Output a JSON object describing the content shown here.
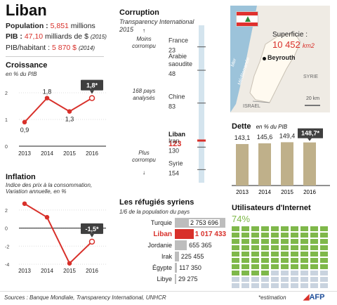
{
  "country": "Liban",
  "facts": {
    "population_label": "Population :",
    "population_value": "5,851",
    "population_unit": "millions",
    "pib_label": "PIB :",
    "pib_value": "47,10",
    "pib_unit": "milliards de $",
    "pib_year": "(2015)",
    "pib_hab_label": "PIB/habitant :",
    "pib_hab_value": "5 870 $",
    "pib_hab_year": "(2014)"
  },
  "croissance": {
    "title": "Croissance",
    "subtitle": "en % du PIB",
    "callout": "1,8*",
    "chart_data": {
      "type": "line",
      "title": "Croissance",
      "ylabel": "en % du PIB",
      "categories": [
        "2013",
        "2014",
        "2015",
        "2016"
      ],
      "values": [
        0.9,
        1.8,
        1.3,
        1.8
      ],
      "value_labels": [
        "0,9",
        "1,8",
        "1,3",
        "1,8*"
      ],
      "yticks": [
        0,
        1,
        2
      ],
      "ylim": [
        0,
        2
      ],
      "estimate_last": true,
      "color": "#d8302a"
    }
  },
  "inflation": {
    "title": "Inflation",
    "subtitle_line1": "Indice des prix à la consommation,",
    "subtitle_line2": "Variation annuelle, en %",
    "callout": "-1,5*",
    "chart_data": {
      "type": "line",
      "title": "Inflation",
      "categories": [
        "2013",
        "2014",
        "2015",
        "2016"
      ],
      "values": [
        2.7,
        1.2,
        -3.9,
        -1.5
      ],
      "value_labels": [
        "",
        "",
        "",
        "-1,5*"
      ],
      "yticks": [
        -4,
        -2,
        0,
        2
      ],
      "ylim": [
        -4,
        3
      ],
      "estimate_last": true,
      "color": "#d8302a"
    }
  },
  "corruption": {
    "title": "Corruption",
    "subtitle_line1": "Transparency International",
    "subtitle_line2": "2015",
    "less_corrupt_line1": "Moins",
    "less_corrupt_line2": "corrompu",
    "more_corrupt_line1": "Plus",
    "more_corrupt_line2": "corrompu",
    "count_line1": "168 pays",
    "count_line2": "analysés",
    "chart_data": {
      "type": "scatter",
      "title": "Corruption",
      "countries": [
        "France",
        "Arabie saoudite",
        "Chine",
        "Liban",
        "Iran",
        "Syrie"
      ],
      "country_lines": [
        [
          "France"
        ],
        [
          "Arabie",
          "saoudite"
        ],
        [
          "Chine"
        ],
        [
          "Liban"
        ],
        [
          "Iran"
        ],
        [
          "Syrie"
        ]
      ],
      "ranks": [
        "23",
        "48",
        "83",
        "123",
        "130",
        "154"
      ],
      "rank_values": [
        23,
        48,
        83,
        123,
        130,
        154
      ],
      "total": 168,
      "highlight": "Liban"
    }
  },
  "refugies": {
    "title": "Les réfugiés syriens",
    "subtitle": "1/6 de la population du pays",
    "chart_data": {
      "type": "bar",
      "title": "Les réfugiés syriens",
      "categories": [
        "Turquie",
        "Liban",
        "Jordanie",
        "Irak",
        "Égypte",
        "Libye"
      ],
      "values": [
        2753696,
        1017433,
        655365,
        225455,
        117350,
        29275
      ],
      "value_labels": [
        "2 753 696",
        "1 017 433",
        "655 365",
        "225 455",
        "117 350",
        "29 275"
      ],
      "highlight": "Liban",
      "highlight_color": "#d8302a"
    }
  },
  "map": {
    "superficie_label": "Superficie :",
    "superficie_value": "10 452",
    "superficie_unit": "km2",
    "capital": "Beyrouth",
    "sea_line1": "Mer",
    "sea_line2": "Méditerranée",
    "neighbor_1": "SYRIE",
    "neighbor_2": "ISRAEL",
    "scale": "20 km"
  },
  "dette": {
    "title": "Dette",
    "subtitle": "en % du PIB",
    "chart_data": {
      "type": "bar",
      "title": "Dette",
      "categories": [
        "2013",
        "2014",
        "2015",
        "2016"
      ],
      "values": [
        143.1,
        145.6,
        149.4,
        148.7
      ],
      "value_labels": [
        "143,1",
        "145,6",
        "149,4",
        "148,7*"
      ],
      "estimate_last": true,
      "color": "#bfb08a"
    }
  },
  "internet": {
    "title": "Utilisateurs d'Internet",
    "percent_label": "74%",
    "chart_data": {
      "type": "waffle",
      "title": "Utilisateurs d'Internet",
      "value": 74,
      "total": 100,
      "colors": {
        "on": "#7fb84a",
        "off": "#c9d3df"
      }
    }
  },
  "footer": {
    "sources": "Sources : Banque Mondiale, Transparency International, UNHCR",
    "estimation": "*estimation",
    "agency": "AFP"
  }
}
